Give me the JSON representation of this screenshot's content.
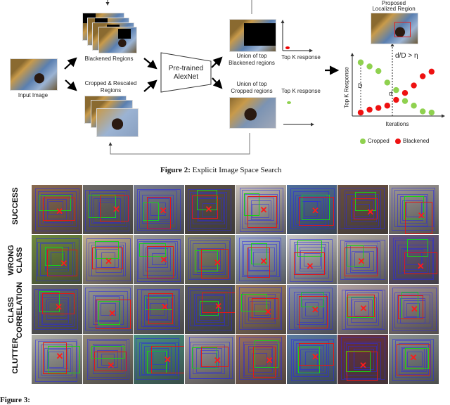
{
  "figure2": {
    "input_label": "Input Image",
    "blackened_label": "Blackened Regions",
    "cropped_label_line1": "Cropped & Rescaled",
    "cropped_label_line2": "Regions",
    "network_line1": "Pre-trained",
    "network_line2": "AlexNet",
    "union_black_line1": "Union of top",
    "union_black_line2": "Blackened regions",
    "union_crop_line1": "Union of top",
    "union_crop_line2": "Cropped regions",
    "topk_label_1": "Top K response",
    "topk_label_2": "Top K response",
    "proposed_line1": "Proposed",
    "proposed_line2": "Localized Region",
    "caption_bold": "Figure 2:",
    "caption_text": " Explicit Image Space Search"
  },
  "chart_data": {
    "type": "scatter",
    "xlabel": "Iterations",
    "ylabel": "Top K Response",
    "annotations": {
      "threshold": "d/D > η",
      "D": "D",
      "d": "d"
    },
    "legend": "bottom",
    "grid": false,
    "series": [
      {
        "name": "Cropped",
        "color": "#8fd14f",
        "x": [
          1,
          2,
          3,
          4,
          5,
          6,
          7,
          8,
          9
        ],
        "y": [
          0.93,
          0.86,
          0.78,
          0.58,
          0.45,
          0.26,
          0.18,
          0.08,
          0.06
        ]
      },
      {
        "name": "Blackened",
        "color": "#ee1111",
        "x": [
          1,
          2,
          3,
          4,
          5,
          6,
          7,
          8,
          9
        ],
        "y": [
          0.06,
          0.11,
          0.14,
          0.18,
          0.28,
          0.4,
          0.53,
          0.69,
          0.77
        ]
      }
    ]
  },
  "figure3": {
    "row_labels": [
      [
        "SUCCESS"
      ],
      [
        "WRONG",
        "CLASS"
      ],
      [
        "CLASS",
        "CORRELATION"
      ],
      [
        "CLUTTER"
      ]
    ],
    "cell_colors": [
      [
        "#8a6a50",
        "#6d6a66",
        "#7a7e90",
        "#5a5048",
        "#c8c0b8",
        "#4f6f9a",
        "#6a5040",
        "#a09a96"
      ],
      [
        "#6f8a3c",
        "#c0b090",
        "#9a9a9a",
        "#8a8a70",
        "#a8b4c8",
        "#c8c8c8",
        "#b0a8a0",
        "#6a5a7a"
      ],
      [
        "#6a6a6a",
        "#9a9a9a",
        "#7a7a7a",
        "#5a5a5a",
        "#a08060",
        "#8a90a8",
        "#b0a0a0",
        "#a09090"
      ],
      [
        "#b0b0a8",
        "#908878",
        "#4a9080",
        "#a8a0a0",
        "#9a7060",
        "#5a7aa0",
        "#6a3040",
        "#8a9090"
      ]
    ],
    "caption_start": "Figure 3:"
  }
}
